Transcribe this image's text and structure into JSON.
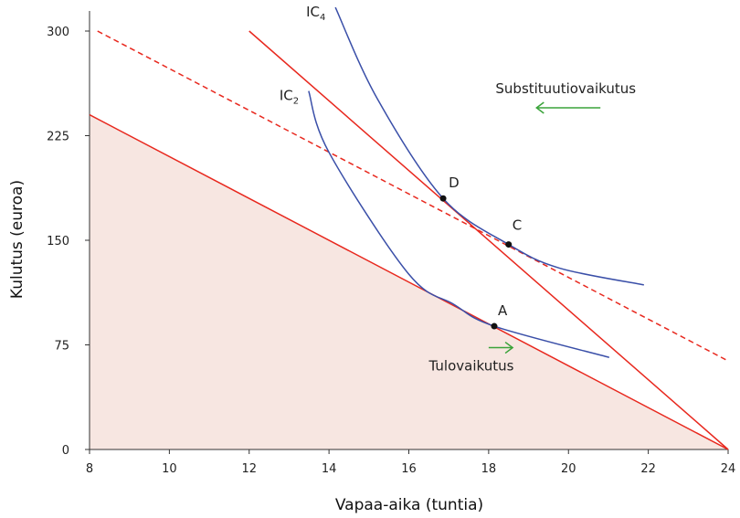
{
  "chart_data": {
    "type": "line",
    "xlabel": "Vapaa-aika (tuntia)",
    "ylabel": "Kulutus (euroa)",
    "xlim": [
      8,
      24
    ],
    "ylim": [
      0,
      300
    ],
    "xticks": [
      8,
      10,
      12,
      14,
      16,
      18,
      20,
      22,
      24
    ],
    "yticks": [
      0,
      75,
      150,
      225,
      300
    ],
    "grid": false,
    "colors": {
      "budget": "#e8281e",
      "indifference": "#3a4fa8",
      "arrow": "#3aa33a",
      "fill": "#f7e6e1"
    },
    "budget_lines": [
      {
        "points": [
          [
            8,
            240
          ],
          [
            24,
            0
          ]
        ],
        "style": "solid",
        "shaded": true
      },
      {
        "points": [
          [
            12,
            300
          ],
          [
            24,
            0
          ]
        ],
        "style": "solid"
      },
      {
        "points": [
          [
            8.2,
            300
          ],
          [
            24,
            63.5
          ]
        ],
        "style": "dashed"
      }
    ],
    "indifference_curves": [
      {
        "name": "IC",
        "sub": "2",
        "points": [
          [
            13.49,
            257
          ],
          [
            14.0,
            213
          ],
          [
            15.99,
            126
          ],
          [
            17.13,
            104
          ],
          [
            18.14,
            88.4
          ],
          [
            21.02,
            66
          ]
        ]
      },
      {
        "name": "IC",
        "sub": "4",
        "points": [
          [
            14.16,
            317
          ],
          [
            15.2,
            252
          ],
          [
            16.86,
            180
          ],
          [
            18.5,
            147
          ],
          [
            19.78,
            130
          ],
          [
            21.89,
            118
          ]
        ]
      }
    ],
    "points": [
      {
        "label": "A",
        "x": 18.14,
        "y": 88.4
      },
      {
        "label": "D",
        "x": 16.86,
        "y": 180
      },
      {
        "label": "C",
        "x": 18.5,
        "y": 147
      }
    ],
    "annotations": [
      {
        "text": "Substituutiovaikutus",
        "arrow_from": [
          20.8,
          245
        ],
        "arrow_to": [
          19.2,
          245
        ]
      },
      {
        "text": "Tulovaikutus",
        "arrow_from": [
          18.0,
          73
        ],
        "arrow_to": [
          18.6,
          73
        ]
      }
    ]
  }
}
